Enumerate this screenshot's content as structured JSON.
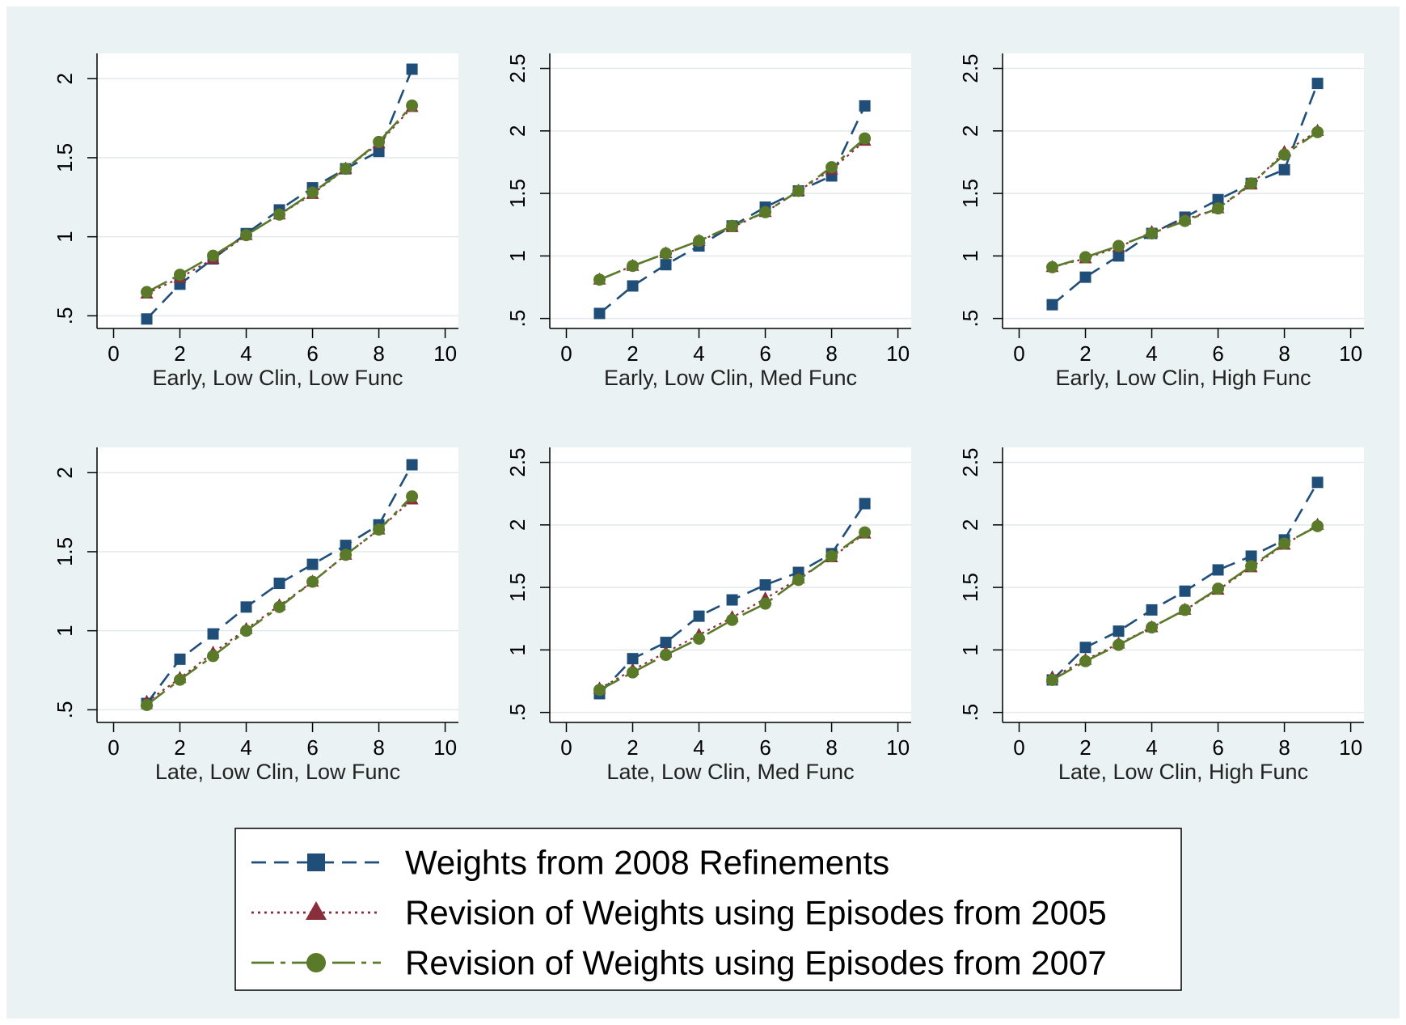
{
  "chart_data": {
    "type": "line",
    "panels": [
      {
        "xlabel": "Early, Low Clin, Low Func",
        "xticks": [
          0,
          2,
          4,
          6,
          8,
          10
        ],
        "yticks": [
          ".5",
          "1",
          "1.5",
          "2"
        ],
        "ytick_values": [
          0.5,
          1,
          1.5,
          2
        ],
        "xlim": [
          -0.5,
          10.4
        ],
        "ylim": [
          0.42,
          2.16
        ],
        "x": [
          1,
          2,
          3,
          4,
          5,
          6,
          7,
          8,
          9
        ],
        "series": [
          {
            "values": [
              0.48,
              0.7,
              0.86,
              1.02,
              1.17,
              1.31,
              1.43,
              1.54,
              2.06
            ]
          },
          {
            "values": [
              0.64,
              0.74,
              0.86,
              1.01,
              1.14,
              1.27,
              1.43,
              1.59,
              1.82
            ]
          },
          {
            "values": [
              0.65,
              0.76,
              0.88,
              1.01,
              1.14,
              1.28,
              1.43,
              1.6,
              1.83
            ]
          }
        ]
      },
      {
        "xlabel": "Early, Low Clin, Med Func",
        "xticks": [
          0,
          2,
          4,
          6,
          8,
          10
        ],
        "yticks": [
          ".5",
          "1",
          "1.5",
          "2",
          "2.5"
        ],
        "ytick_values": [
          0.5,
          1,
          1.5,
          2,
          2.5
        ],
        "xlim": [
          -0.5,
          10.4
        ],
        "ylim": [
          0.42,
          2.62
        ],
        "x": [
          1,
          2,
          3,
          4,
          5,
          6,
          7,
          8,
          9
        ],
        "series": [
          {
            "values": [
              0.54,
              0.76,
              0.93,
              1.08,
              1.24,
              1.39,
              1.52,
              1.64,
              2.2
            ]
          },
          {
            "values": [
              0.81,
              0.92,
              1.02,
              1.12,
              1.23,
              1.35,
              1.52,
              1.69,
              1.92
            ]
          },
          {
            "values": [
              0.81,
              0.92,
              1.02,
              1.12,
              1.24,
              1.35,
              1.52,
              1.71,
              1.94
            ]
          }
        ]
      },
      {
        "xlabel": "Early, Low Clin, High Func",
        "xticks": [
          0,
          2,
          4,
          6,
          8,
          10
        ],
        "yticks": [
          ".5",
          "1",
          "1.5",
          "2",
          "2.5"
        ],
        "ytick_values": [
          0.5,
          1,
          1.5,
          2,
          2.5
        ],
        "xlim": [
          -0.5,
          10.4
        ],
        "ylim": [
          0.42,
          2.62
        ],
        "x": [
          1,
          2,
          3,
          4,
          5,
          6,
          7,
          8,
          9
        ],
        "series": [
          {
            "values": [
              0.61,
              0.83,
              1.0,
              1.18,
              1.31,
              1.45,
              1.58,
              1.69,
              2.38
            ]
          },
          {
            "values": [
              0.91,
              0.98,
              1.07,
              1.19,
              1.29,
              1.38,
              1.57,
              1.83,
              2.0
            ]
          },
          {
            "values": [
              0.91,
              0.99,
              1.08,
              1.18,
              1.28,
              1.38,
              1.58,
              1.81,
              1.99
            ]
          }
        ]
      },
      {
        "xlabel": "Late, Low Clin, Low Func",
        "xticks": [
          0,
          2,
          4,
          6,
          8,
          10
        ],
        "yticks": [
          ".5",
          "1",
          "1.5",
          "2"
        ],
        "ytick_values": [
          0.5,
          1,
          1.5,
          2
        ],
        "xlim": [
          -0.5,
          10.4
        ],
        "ylim": [
          0.42,
          2.16
        ],
        "x": [
          1,
          2,
          3,
          4,
          5,
          6,
          7,
          8,
          9
        ],
        "series": [
          {
            "values": [
              0.54,
              0.82,
              0.98,
              1.15,
              1.3,
              1.42,
              1.54,
              1.67,
              2.05
            ]
          },
          {
            "values": [
              0.55,
              0.7,
              0.86,
              1.01,
              1.16,
              1.31,
              1.48,
              1.64,
              1.83
            ]
          },
          {
            "values": [
              0.53,
              0.69,
              0.84,
              1.0,
              1.15,
              1.31,
              1.48,
              1.64,
              1.85
            ]
          }
        ]
      },
      {
        "xlabel": "Late, Low Clin, Med Func",
        "xticks": [
          0,
          2,
          4,
          6,
          8,
          10
        ],
        "yticks": [
          ".5",
          "1",
          "1.5",
          "2",
          "2.5"
        ],
        "ytick_values": [
          0.5,
          1,
          1.5,
          2,
          2.5
        ],
        "xlim": [
          -0.5,
          10.4
        ],
        "ylim": [
          0.42,
          2.62
        ],
        "x": [
          1,
          2,
          3,
          4,
          5,
          6,
          7,
          8,
          9
        ],
        "series": [
          {
            "values": [
              0.65,
              0.93,
              1.06,
              1.27,
              1.4,
              1.52,
              1.62,
              1.77,
              2.17
            ]
          },
          {
            "values": [
              0.69,
              0.84,
              0.98,
              1.12,
              1.26,
              1.41,
              1.57,
              1.74,
              1.93
            ]
          },
          {
            "values": [
              0.68,
              0.82,
              0.96,
              1.09,
              1.24,
              1.37,
              1.56,
              1.75,
              1.94
            ]
          }
        ]
      },
      {
        "xlabel": "Late, Low Clin, High Func",
        "xticks": [
          0,
          2,
          4,
          6,
          8,
          10
        ],
        "yticks": [
          ".5",
          "1",
          "1.5",
          "2",
          "2.5"
        ],
        "ytick_values": [
          0.5,
          1,
          1.5,
          2,
          2.5
        ],
        "xlim": [
          -0.5,
          10.4
        ],
        "ylim": [
          0.42,
          2.62
        ],
        "x": [
          1,
          2,
          3,
          4,
          5,
          6,
          7,
          8,
          9
        ],
        "series": [
          {
            "values": [
              0.76,
              1.02,
              1.15,
              1.32,
              1.47,
              1.64,
              1.75,
              1.88,
              2.34
            ]
          },
          {
            "values": [
              0.78,
              0.92,
              1.05,
              1.18,
              1.32,
              1.48,
              1.66,
              1.84,
              2.0
            ]
          },
          {
            "values": [
              0.76,
              0.91,
              1.04,
              1.18,
              1.32,
              1.49,
              1.67,
              1.85,
              1.99
            ]
          }
        ]
      }
    ],
    "legend": {
      "placement": "bottom",
      "entries": [
        {
          "label": "Weights from 2008 Refinements",
          "color": "#1f4e79",
          "marker": "square",
          "dash": "dashed"
        },
        {
          "label": "Revision of Weights using Episodes from 2005",
          "color": "#8b2e3c",
          "marker": "triangle",
          "dash": "dotted"
        },
        {
          "label": "Revision of Weights using Episodes from 2007",
          "color": "#5a7a2a",
          "marker": "circle",
          "dash": "longdash"
        }
      ]
    },
    "grid": "horizontal",
    "colors": {
      "background": "#eaf2f3",
      "plot": "#ffffff",
      "grid": "#e3e8ea"
    }
  }
}
